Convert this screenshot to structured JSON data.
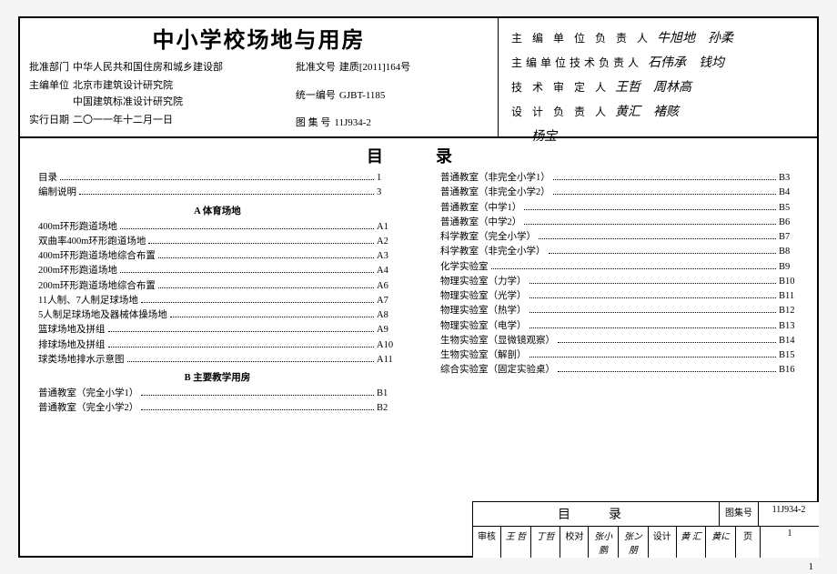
{
  "title": "中小学校场地与用房",
  "meta": {
    "approve_dept_label": "批准部门",
    "approve_dept": "中华人民共和国住房和城乡建设部",
    "chief_unit_label": "主编单位",
    "chief_unit1": "北京市建筑设计研究院",
    "chief_unit2": "中国建筑标准设计研究院",
    "effective_date_label": "实行日期",
    "effective_date": "二〇一一年十二月一日",
    "approve_doc_label": "批准文号",
    "approve_doc": "建质[2011]164号",
    "unify_code_label": "统一编号",
    "unify_code": "GJBT-1185",
    "atlas_code_label": "图 集 号",
    "atlas_code": "11J934-2"
  },
  "signatures": {
    "l1": "主 编 单 位 负 责 人",
    "l2": "主编单位技术负责人",
    "l3": "技 术 审 定 人",
    "l4": "设 计 负 责 人"
  },
  "toc_label": "目　录",
  "left_entries": [
    {
      "t": "目录",
      "p": "1"
    },
    {
      "t": "编制说明",
      "p": "3"
    }
  ],
  "sec_a": "A 体育场地",
  "a_entries": [
    {
      "t": "400m环形跑道场地",
      "p": "A1"
    },
    {
      "t": "双曲率400m环形跑道场地",
      "p": "A2"
    },
    {
      "t": "400m环形跑道场地综合布置",
      "p": "A3"
    },
    {
      "t": "200m环形跑道场地",
      "p": "A4"
    },
    {
      "t": "200m环形跑道场地综合布置",
      "p": "A6"
    },
    {
      "t": "11人制、7人制足球场地",
      "p": "A7"
    },
    {
      "t": "5人制足球场地及器械体操场地",
      "p": "A8"
    },
    {
      "t": "篮球场地及拼组",
      "p": "A9"
    },
    {
      "t": "排球场地及拼组",
      "p": "A10"
    },
    {
      "t": "球类场地排水示意图",
      "p": "A11"
    }
  ],
  "sec_b": "B 主要教学用房",
  "b1_entries": [
    {
      "t": "普通教室（完全小学1）",
      "p": "B1"
    },
    {
      "t": "普通教室（完全小学2）",
      "p": "B2"
    }
  ],
  "b2_entries": [
    {
      "t": "普通教室（非完全小学1）",
      "p": "B3"
    },
    {
      "t": "普通教室（非完全小学2）",
      "p": "B4"
    },
    {
      "t": "普通教室（中学1）",
      "p": "B5"
    },
    {
      "t": "普通教室（中学2）",
      "p": "B6"
    },
    {
      "t": "科学教室（完全小学）",
      "p": "B7"
    },
    {
      "t": "科学教室（非完全小学）",
      "p": "B8"
    },
    {
      "t": "化学实验室",
      "p": "B9"
    },
    {
      "t": "物理实验室（力学）",
      "p": "B10"
    },
    {
      "t": "物理实验室（光学）",
      "p": "B11"
    },
    {
      "t": "物理实验室（热学）",
      "p": "B12"
    },
    {
      "t": "物理实验室（电学）",
      "p": "B13"
    },
    {
      "t": "生物实验室（显微镜观察）",
      "p": "B14"
    },
    {
      "t": "生物实验室（解剖）",
      "p": "B15"
    },
    {
      "t": "综合实验室（固定实验桌）",
      "p": "B16"
    }
  ],
  "footer": {
    "title": "目　录",
    "atlas_lab": "图集号",
    "atlas_val": "11J934-2",
    "check_lab": "审核",
    "check_val": "王 哲",
    "proof_lab": "校对",
    "proof_val": "张小鹏",
    "design_lab": "设计",
    "design_val": "黄 汇",
    "page_lab": "页",
    "page_val": "1"
  },
  "page_num": "1"
}
